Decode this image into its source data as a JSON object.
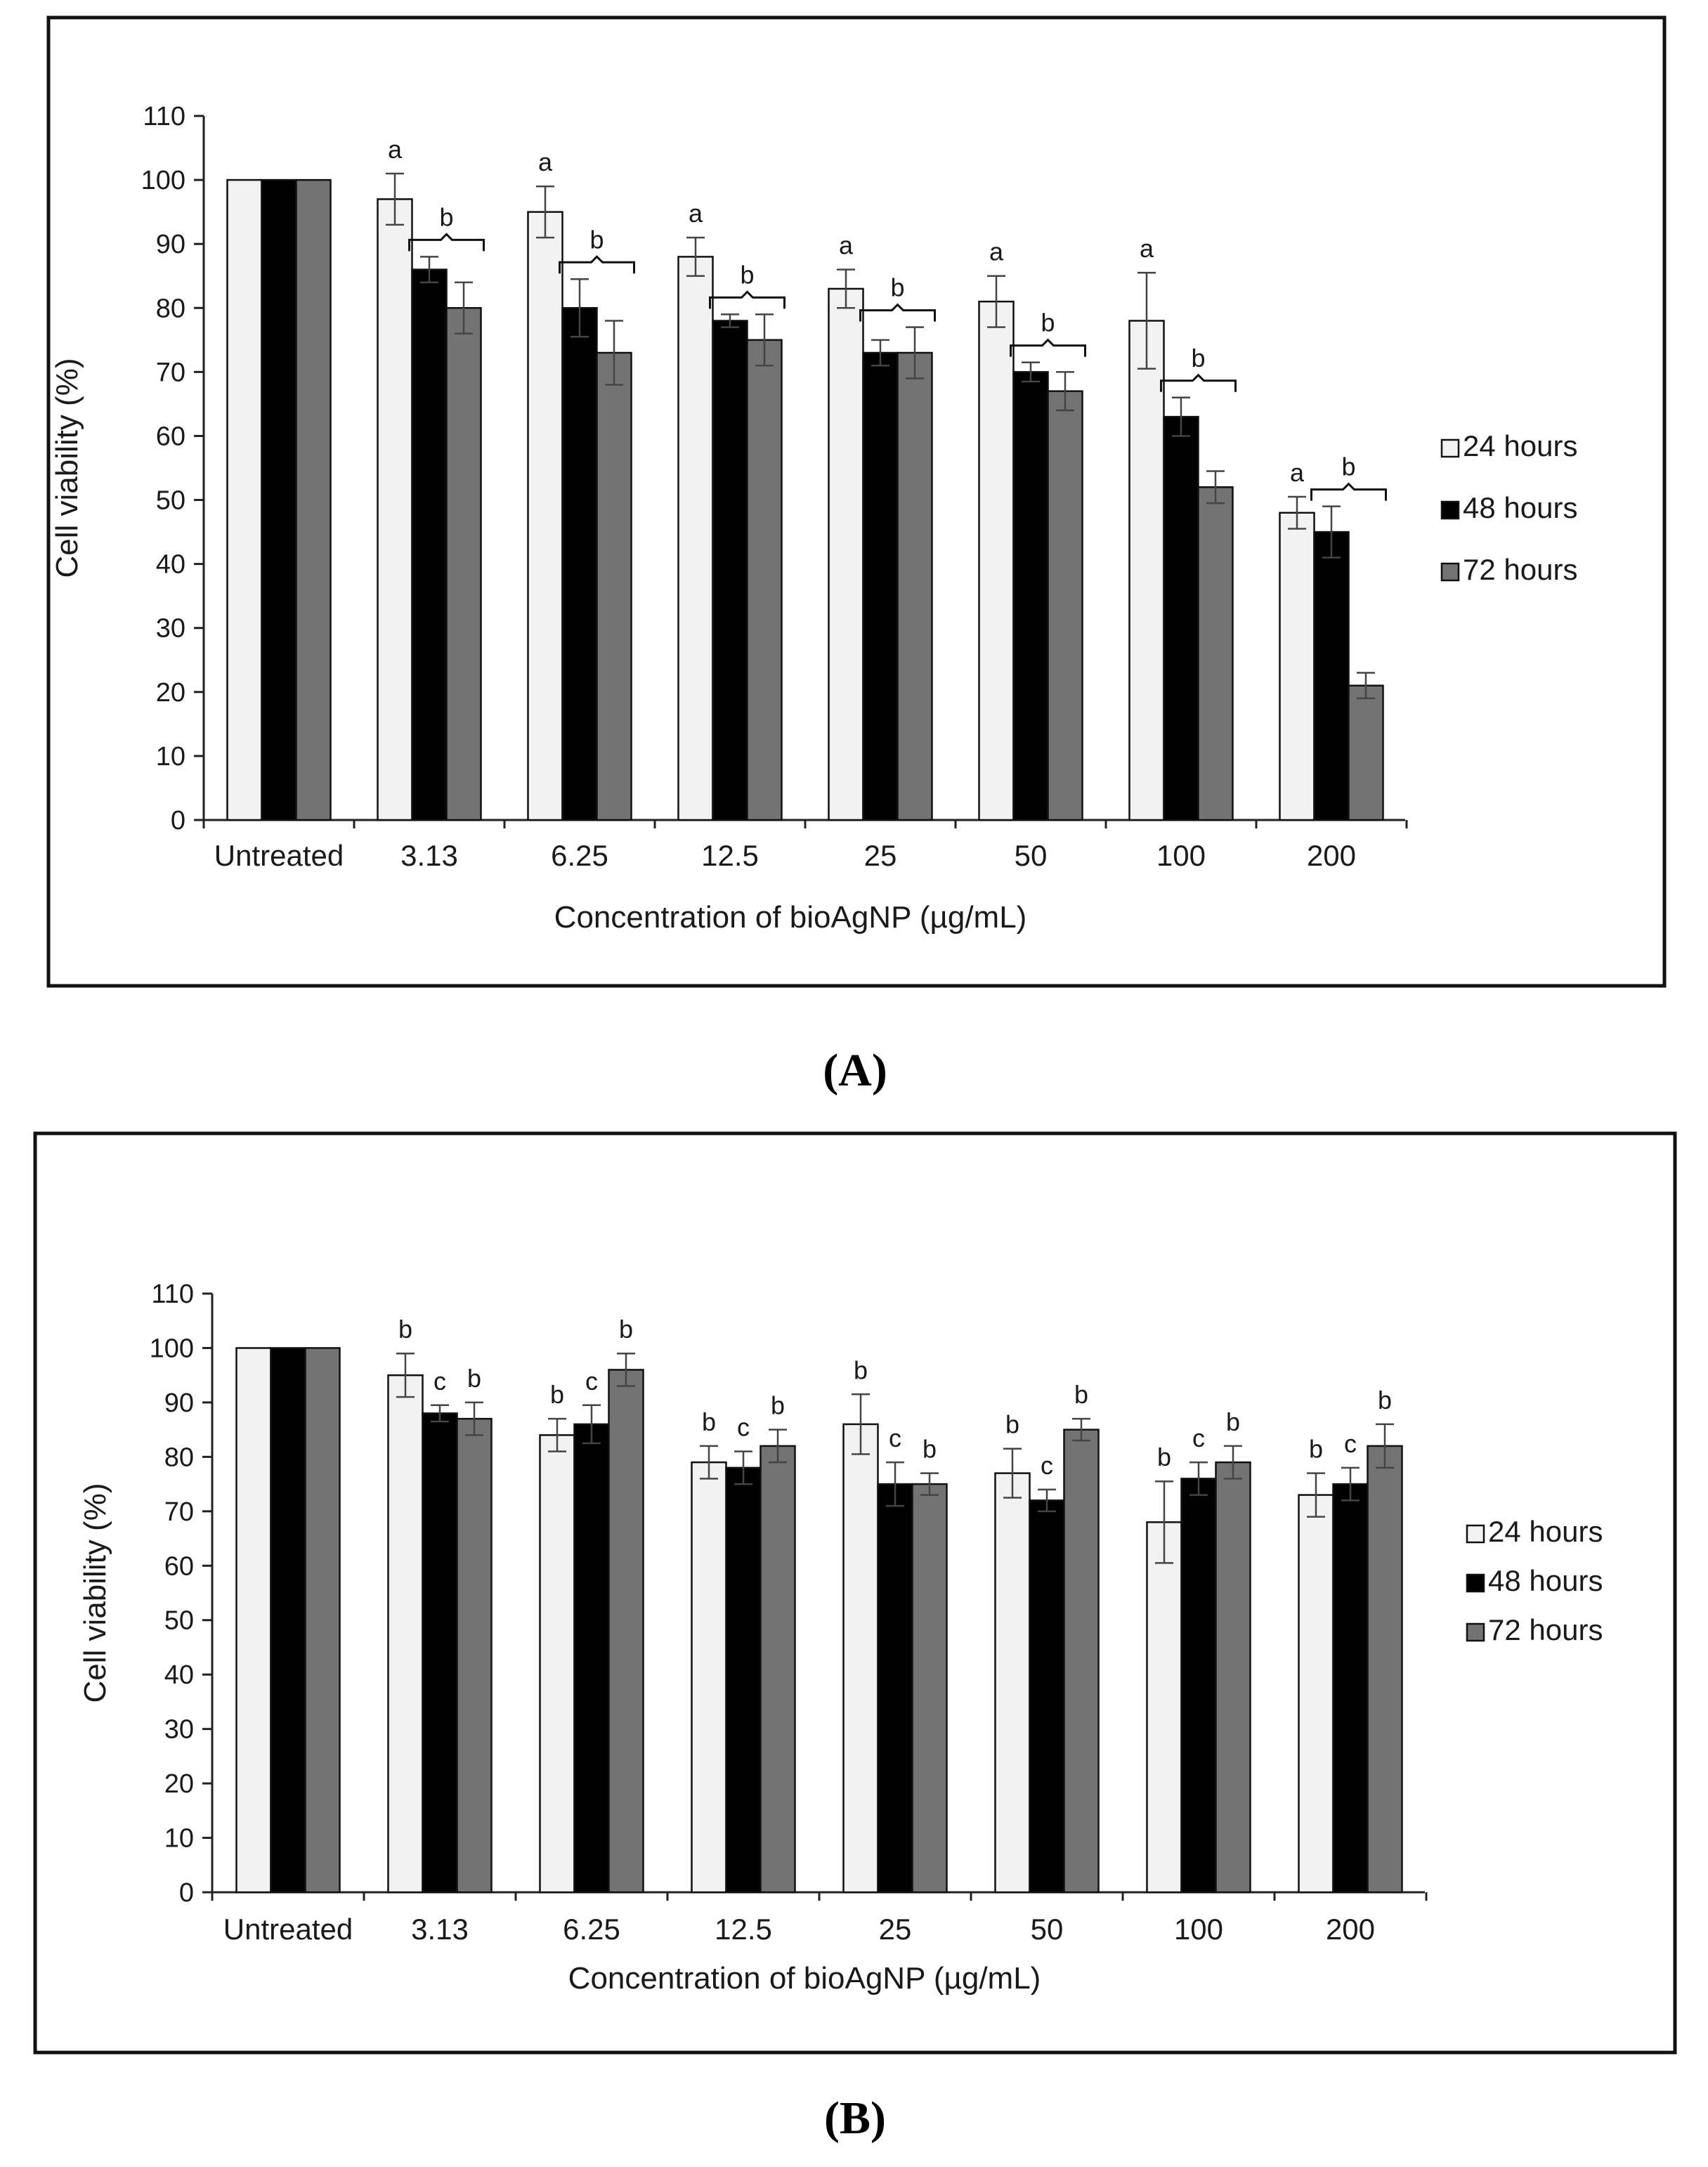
{
  "chart_data": [
    {
      "type": "bar",
      "panel_label": "A",
      "caption": "(A)",
      "title": "",
      "xlabel": "Concentration of bioAgNP (µg/mL)",
      "ylabel": "Cell viability (%)",
      "ylim": [
        0,
        110
      ],
      "yticks": [
        0,
        10,
        20,
        30,
        40,
        50,
        60,
        70,
        80,
        90,
        100,
        110
      ],
      "categories": [
        "Untreated",
        "3.13",
        "6.25",
        "12.5",
        "25",
        "50",
        "100",
        "200"
      ],
      "series": [
        {
          "name": "24 hours",
          "color": "#f2f2f2",
          "values": [
            100,
            97,
            95,
            88,
            83,
            81,
            78,
            48
          ],
          "errors": [
            0,
            4,
            4,
            3,
            3,
            4,
            7.5,
            2.5
          ]
        },
        {
          "name": "48 hours",
          "color": "#000000",
          "values": [
            100,
            86,
            80,
            78,
            73,
            70,
            63,
            45
          ],
          "errors": [
            0,
            2,
            4.5,
            1,
            2,
            1.5,
            3,
            4
          ]
        },
        {
          "name": "72 hours",
          "color": "#737373",
          "values": [
            100,
            80,
            73,
            75,
            73,
            67,
            52,
            21
          ],
          "errors": [
            0,
            4,
            5,
            4,
            4,
            3,
            2.5,
            2
          ]
        }
      ],
      "annotations": [
        {
          "category": "3.13",
          "label_24": "a",
          "bracket": "b"
        },
        {
          "category": "6.25",
          "label_24": "a",
          "bracket": "b"
        },
        {
          "category": "12.5",
          "label_24": "a",
          "bracket": "b"
        },
        {
          "category": "25",
          "label_24": "a",
          "bracket": "b"
        },
        {
          "category": "50",
          "label_24": "a",
          "bracket": "b"
        },
        {
          "category": "100",
          "label_24": "a",
          "bracket": "b"
        },
        {
          "category": "200",
          "label_24": "a",
          "bracket": "b"
        }
      ],
      "legend_position": "right"
    },
    {
      "type": "bar",
      "panel_label": "B",
      "caption": "(B)",
      "title": "",
      "xlabel": "Concentration of bioAgNP (µg/mL)",
      "ylabel": "Cell viability (%)",
      "ylim": [
        0,
        110
      ],
      "yticks": [
        0,
        10,
        20,
        30,
        40,
        50,
        60,
        70,
        80,
        90,
        100,
        110
      ],
      "categories": [
        "Untreated",
        "3.13",
        "6.25",
        "12.5",
        "25",
        "50",
        "100",
        "200"
      ],
      "series": [
        {
          "name": "24 hours",
          "color": "#f2f2f2",
          "values": [
            100,
            95,
            84,
            79,
            86,
            77,
            68,
            73
          ],
          "errors": [
            0,
            4,
            3,
            3,
            5.5,
            4.5,
            7.5,
            4
          ],
          "labels": [
            "",
            "b",
            "b",
            "b",
            "b",
            "b",
            "b",
            "b"
          ]
        },
        {
          "name": "48 hours",
          "color": "#000000",
          "values": [
            100,
            88,
            86,
            78,
            75,
            72,
            76,
            75
          ],
          "errors": [
            0,
            1.5,
            3.5,
            3,
            4,
            2,
            3,
            3
          ],
          "labels": [
            "",
            "c",
            "c",
            "c",
            "c",
            "c",
            "c",
            "c"
          ]
        },
        {
          "name": "72 hours",
          "color": "#737373",
          "values": [
            100,
            87,
            96,
            82,
            75,
            85,
            79,
            82
          ],
          "errors": [
            0,
            3,
            3,
            3,
            2,
            2,
            3,
            4
          ],
          "labels": [
            "",
            "b",
            "b",
            "b",
            "b",
            "b",
            "b",
            "b"
          ]
        }
      ],
      "legend_position": "right"
    }
  ]
}
